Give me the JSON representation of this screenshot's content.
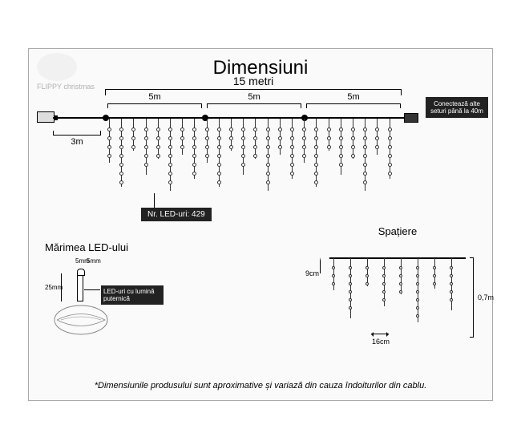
{
  "title": "Dimensiuni",
  "logo_text": "FLIPPY christmas",
  "total_length": "15 metri",
  "segment_length": "5m",
  "lead_length": "3m",
  "connect_text": "Conectează alte seturi până la 40m",
  "led_count": "Nr. LED-uri: 429",
  "led_size": {
    "title": "Mărimea LED-ului",
    "width": "5mm",
    "cap": "5mm",
    "height": "25mm",
    "desc": "LED-uri cu lumină puternică"
  },
  "spacing": {
    "title": "Spațiere",
    "lead_gap": "9cm",
    "strand_gap": "16cm",
    "drop": "0,7m"
  },
  "footnote": "*Dimensiunile produsului sunt aproximative și variază din cauza îndoiturilor din cablu.",
  "strand_heights": [
    55,
    85,
    40,
    70,
    50,
    90,
    45,
    75,
    55,
    85,
    40,
    70,
    50,
    90,
    45,
    75,
    55,
    85,
    40,
    70,
    50,
    90,
    45,
    75
  ],
  "sp_strand_heights": [
    40,
    75,
    35,
    60,
    45,
    80,
    38,
    65
  ]
}
